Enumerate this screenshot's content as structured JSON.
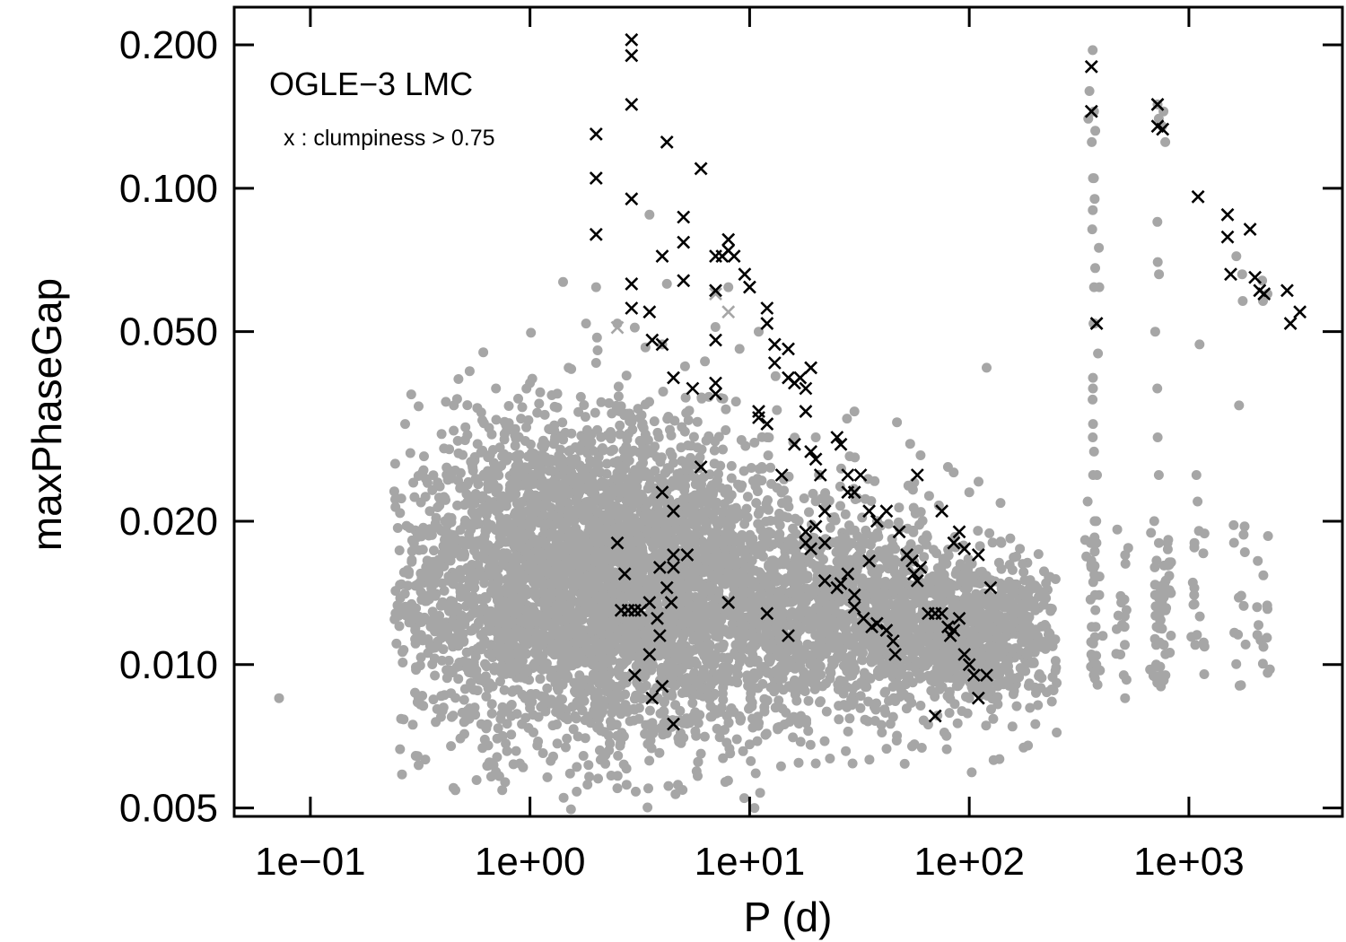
{
  "chart_data": {
    "type": "scatter",
    "title": "",
    "xlabel": "P (d)",
    "ylabel": "maxPhaseGap",
    "x_scale": "log",
    "y_scale": "log",
    "xlim": [
      0.045,
      5000
    ],
    "ylim": [
      0.0048,
      0.24
    ],
    "x_ticks": [
      {
        "value": 0.1,
        "label": "1e−01"
      },
      {
        "value": 1,
        "label": "1e+00"
      },
      {
        "value": 10,
        "label": "1e+01"
      },
      {
        "value": 100,
        "label": "1e+02"
      },
      {
        "value": 1000,
        "label": "1e+03"
      }
    ],
    "y_ticks": [
      {
        "value": 0.005,
        "label": "0.005"
      },
      {
        "value": 0.01,
        "label": "0.010"
      },
      {
        "value": 0.02,
        "label": "0.020"
      },
      {
        "value": 0.05,
        "label": "0.050"
      },
      {
        "value": 0.1,
        "label": "0.100"
      },
      {
        "value": 0.2,
        "label": "0.200"
      }
    ],
    "annotations": {
      "label": "OGLE−3 LMC",
      "note": "x : clumpiness > 0.75"
    },
    "grid": false,
    "colors": {
      "dots": "#a6a6a6",
      "crosses": "#000000",
      "light_crosses": "#a6a6a6"
    },
    "series": [
      {
        "marker": "dot",
        "color": "#a6a6a6",
        "core_points": [
          [
            0.072,
            0.0085
          ],
          [
            0.27,
            0.032
          ],
          [
            0.3,
            0.0118
          ],
          [
            0.35,
            0.021
          ],
          [
            0.4,
            0.008
          ],
          [
            0.45,
            0.035
          ],
          [
            0.6,
            0.0075
          ],
          [
            0.7,
            0.038
          ],
          [
            1.0,
            0.039
          ],
          [
            1.5,
            0.042
          ],
          [
            1.8,
            0.052
          ],
          [
            2.0,
            0.043
          ],
          [
            2.0,
            0.062
          ],
          [
            2.5,
            0.0055
          ],
          [
            3.0,
            0.051
          ],
          [
            4.0,
            0.047
          ],
          [
            3.5,
            0.088
          ],
          [
            4.2,
            0.063
          ],
          [
            1.2,
            0.0058
          ],
          [
            0.9,
            0.0062
          ],
          [
            6.0,
            0.0065
          ],
          [
            10.0,
            0.0068
          ],
          [
            20.0,
            0.0062
          ],
          [
            40.0,
            0.0072
          ],
          [
            60.0,
            0.0082
          ],
          [
            100.0,
            0.0085
          ],
          [
            160.0,
            0.0088
          ],
          [
            200.0,
            0.0075
          ],
          [
            250.0,
            0.0072
          ],
          [
            120.0,
            0.042
          ],
          [
            80.0,
            0.026
          ],
          [
            60.0,
            0.0275
          ],
          [
            9.0,
            0.046
          ],
          [
            12.0,
            0.03
          ],
          [
            20.0,
            0.03
          ],
          [
            30.0,
            0.034
          ],
          [
            100.0,
            0.023
          ],
          [
            140.0,
            0.018
          ],
          [
            170.0,
            0.0175
          ],
          [
            200.0,
            0.013
          ],
          [
            2.5,
            0.052
          ],
          [
            8.0,
            0.062
          ],
          [
            11.0,
            0.05
          ]
        ],
        "columns": [
          {
            "x": 360,
            "y": [
              0.0095,
              0.0105,
              0.012,
              0.014,
              0.016,
              0.018,
              0.02,
              0.022,
              0.025,
              0.028,
              0.032,
              0.036,
              0.04,
              0.052,
              0.062,
              0.068,
              0.082,
              0.095,
              0.105,
              0.125,
              0.14,
              0.16,
              0.195
            ]
          },
          {
            "x": 380,
            "y": [
              0.01,
              0.012,
              0.014,
              0.016,
              0.018,
              0.02,
              0.025,
              0.03,
              0.038,
              0.045,
              0.052,
              0.062,
              0.075,
              0.09,
              0.105,
              0.132,
              0.145
            ]
          },
          {
            "x": 720,
            "y": [
              0.009,
              0.0095,
              0.01,
              0.011,
              0.012,
              0.013,
              0.014,
              0.016,
              0.018,
              0.02,
              0.025,
              0.03,
              0.038,
              0.05,
              0.066,
              0.07,
              0.085,
              0.14,
              0.15
            ]
          },
          {
            "x": 760,
            "y": [
              0.0095,
              0.011,
              0.013,
              0.014,
              0.135,
              0.145
            ]
          },
          {
            "x": 800,
            "y": [
              0.0115,
              0.015,
              0.018,
              0.125
            ]
          },
          {
            "x": 500,
            "y": [
              0.0085,
              0.0095,
              0.0105,
              0.012,
              0.0135,
              0.011
            ]
          },
          {
            "x": 1100,
            "y": [
              0.011,
              0.014,
              0.018,
              0.022,
              0.025,
              0.047
            ]
          },
          {
            "x": 1700,
            "y": [
              0.035,
              0.058,
              0.066,
              0.072
            ]
          },
          {
            "x": 2200,
            "y": [
              0.058,
              0.06,
              0.064
            ]
          }
        ]
      },
      {
        "marker": "x",
        "color": "#000000",
        "points": [
          [
            2.0,
            0.13
          ],
          [
            2.0,
            0.105
          ],
          [
            2.0,
            0.08
          ],
          [
            2.9,
            0.205
          ],
          [
            2.9,
            0.19
          ],
          [
            2.9,
            0.15
          ],
          [
            2.9,
            0.095
          ],
          [
            2.9,
            0.063
          ],
          [
            2.9,
            0.056
          ],
          [
            3.5,
            0.055
          ],
          [
            4.2,
            0.125
          ],
          [
            4.0,
            0.072
          ],
          [
            5.0,
            0.087
          ],
          [
            5.0,
            0.077
          ],
          [
            5.0,
            0.064
          ],
          [
            6.0,
            0.11
          ],
          [
            3.6,
            0.048
          ],
          [
            4.0,
            0.047
          ],
          [
            4.5,
            0.04
          ],
          [
            5.5,
            0.038
          ],
          [
            7.0,
            0.072
          ],
          [
            7.0,
            0.061
          ],
          [
            7.0,
            0.048
          ],
          [
            7.0,
            0.039
          ],
          [
            7.0,
            0.037
          ],
          [
            7.5,
            0.072
          ],
          [
            8.0,
            0.078
          ],
          [
            8.0,
            0.074
          ],
          [
            8.5,
            0.072
          ],
          [
            9.5,
            0.066
          ],
          [
            10.0,
            0.062
          ],
          [
            12.0,
            0.056
          ],
          [
            12.0,
            0.052
          ],
          [
            13.0,
            0.047
          ],
          [
            13.0,
            0.043
          ],
          [
            15.0,
            0.046
          ],
          [
            15.0,
            0.04
          ],
          [
            16.0,
            0.039
          ],
          [
            17.0,
            0.04
          ],
          [
            18.0,
            0.038
          ],
          [
            19.0,
            0.042
          ],
          [
            11.0,
            0.034
          ],
          [
            11.0,
            0.033
          ],
          [
            12.0,
            0.032
          ],
          [
            14.0,
            0.025
          ],
          [
            16.0,
            0.029
          ],
          [
            18.0,
            0.034
          ],
          [
            19.0,
            0.028
          ],
          [
            20.0,
            0.027
          ],
          [
            21.0,
            0.025
          ],
          [
            25.0,
            0.03
          ],
          [
            26.0,
            0.029
          ],
          [
            28.0,
            0.025
          ],
          [
            28.0,
            0.023
          ],
          [
            30.0,
            0.023
          ],
          [
            32.0,
            0.025
          ],
          [
            22.0,
            0.021
          ],
          [
            35.0,
            0.021
          ],
          [
            38.0,
            0.02
          ],
          [
            42.0,
            0.021
          ],
          [
            48.0,
            0.019
          ],
          [
            52.0,
            0.017
          ],
          [
            58.0,
            0.025
          ],
          [
            6.0,
            0.026
          ],
          [
            5.2,
            0.017
          ],
          [
            4.0,
            0.023
          ],
          [
            4.5,
            0.021
          ],
          [
            2.5,
            0.018
          ],
          [
            2.7,
            0.0155
          ],
          [
            2.6,
            0.013
          ],
          [
            2.8,
            0.013
          ],
          [
            3.0,
            0.013
          ],
          [
            3.2,
            0.013
          ],
          [
            3.5,
            0.0135
          ],
          [
            3.8,
            0.0125
          ],
          [
            3.9,
            0.0115
          ],
          [
            3.5,
            0.0105
          ],
          [
            3.9,
            0.016
          ],
          [
            4.2,
            0.0145
          ],
          [
            4.5,
            0.017
          ],
          [
            4.5,
            0.016
          ],
          [
            4.4,
            0.0135
          ],
          [
            3.0,
            0.0095
          ],
          [
            3.6,
            0.0085
          ],
          [
            4.0,
            0.009
          ],
          [
            4.5,
            0.0075
          ],
          [
            8.0,
            0.0135
          ],
          [
            12.0,
            0.0128
          ],
          [
            15.0,
            0.0115
          ],
          [
            18.0,
            0.019
          ],
          [
            18.0,
            0.018
          ],
          [
            19.0,
            0.0175
          ],
          [
            20.0,
            0.0195
          ],
          [
            22.0,
            0.018
          ],
          [
            22.0,
            0.015
          ],
          [
            25.0,
            0.0145
          ],
          [
            26.0,
            0.0148
          ],
          [
            28.0,
            0.0155
          ],
          [
            30.0,
            0.014
          ],
          [
            30.0,
            0.0132
          ],
          [
            33.0,
            0.0125
          ],
          [
            36.0,
            0.012
          ],
          [
            38.0,
            0.0122
          ],
          [
            42.0,
            0.0118
          ],
          [
            45.0,
            0.0112
          ],
          [
            46.0,
            0.0105
          ],
          [
            35.0,
            0.0165
          ],
          [
            55.0,
            0.0165
          ],
          [
            56.0,
            0.0155
          ],
          [
            58.0,
            0.015
          ],
          [
            60.0,
            0.016
          ],
          [
            65.0,
            0.0128
          ],
          [
            70.0,
            0.0128
          ],
          [
            75.0,
            0.0128
          ],
          [
            80.0,
            0.012
          ],
          [
            82.0,
            0.0115
          ],
          [
            85.0,
            0.0118
          ],
          [
            90.0,
            0.0125
          ],
          [
            95.0,
            0.0105
          ],
          [
            100.0,
            0.01
          ],
          [
            105.0,
            0.0095
          ],
          [
            110.0,
            0.0085
          ],
          [
            120.0,
            0.0095
          ],
          [
            70.0,
            0.0078
          ],
          [
            75.0,
            0.021
          ],
          [
            85.0,
            0.018
          ],
          [
            90.0,
            0.019
          ],
          [
            95.0,
            0.0175
          ],
          [
            110.0,
            0.017
          ],
          [
            125.0,
            0.0145
          ],
          [
            360.0,
            0.18
          ],
          [
            360.0,
            0.145
          ],
          [
            380.0,
            0.052
          ],
          [
            720.0,
            0.15
          ],
          [
            720.0,
            0.135
          ],
          [
            760.0,
            0.133
          ],
          [
            1100.0,
            0.096
          ],
          [
            1500.0,
            0.088
          ],
          [
            1500.0,
            0.079
          ],
          [
            1550.0,
            0.066
          ],
          [
            1900.0,
            0.082
          ],
          [
            2000.0,
            0.065
          ],
          [
            2100.0,
            0.061
          ],
          [
            2200.0,
            0.06
          ],
          [
            2800.0,
            0.061
          ],
          [
            2900.0,
            0.052
          ],
          [
            3200.0,
            0.055
          ]
        ]
      },
      {
        "marker": "x",
        "color": "#a6a6a6",
        "points": [
          [
            2.5,
            0.051
          ],
          [
            8.0,
            0.055
          ],
          [
            7.0,
            0.06
          ]
        ]
      }
    ]
  }
}
